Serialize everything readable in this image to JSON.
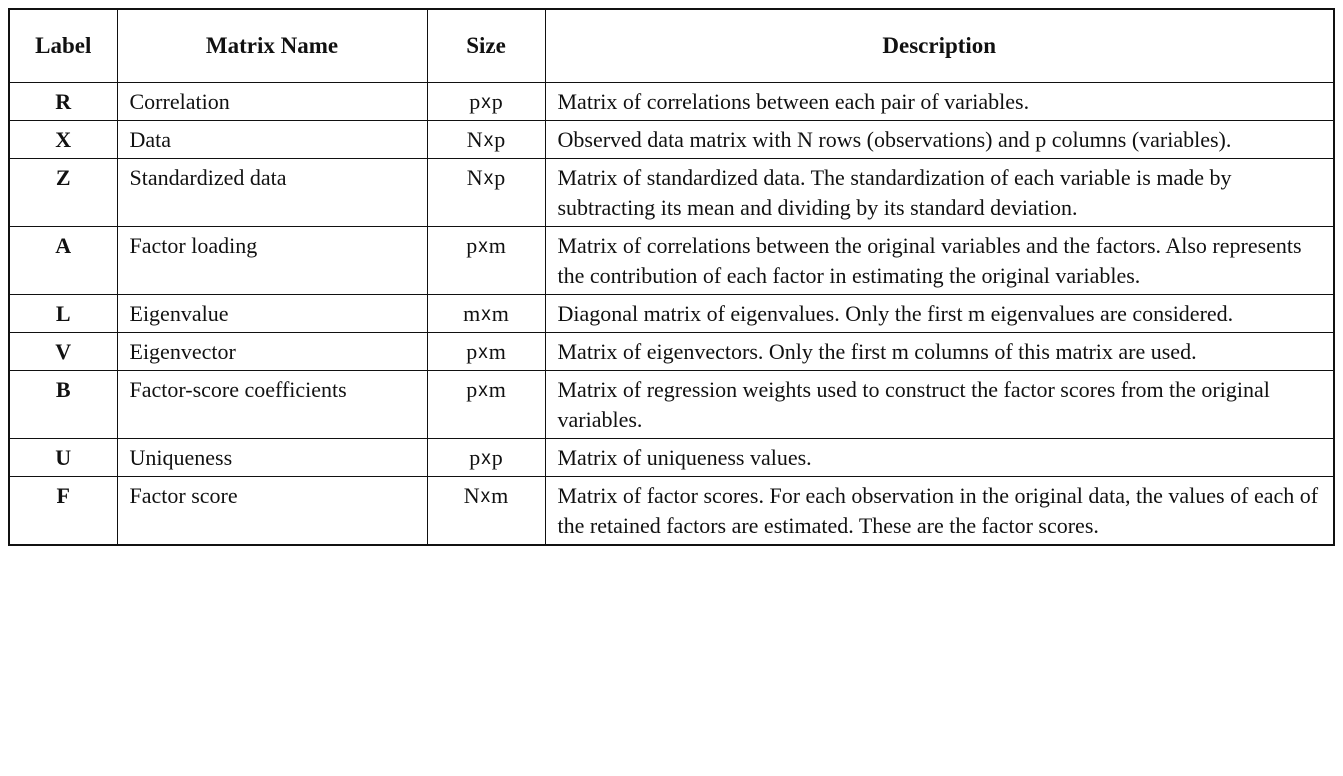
{
  "table": {
    "headers": {
      "label": "Label",
      "name": "Matrix Name",
      "size": "Size",
      "description": "Description"
    },
    "rows": [
      {
        "label": "R",
        "name": "Correlation",
        "size_a": "p",
        "size_b": "p",
        "description": "Matrix of correlations between each pair of variables."
      },
      {
        "label": "X",
        "name": "Data",
        "size_a": "N",
        "size_b": "p",
        "description": "Observed data matrix with N rows (observations) and p columns (variables)."
      },
      {
        "label": "Z",
        "name": "Standardized data",
        "size_a": "N",
        "size_b": "p",
        "description": "Matrix of standardized data. The standardization of each variable is made by subtracting its mean and dividing by its standard deviation."
      },
      {
        "label": "A",
        "name": "Factor loading",
        "size_a": "p",
        "size_b": "m",
        "description": "Matrix of correlations between the original variables and the factors. Also represents the contribution of each factor in estimating the original variables."
      },
      {
        "label": "L",
        "name": "Eigenvalue",
        "size_a": "m",
        "size_b": "m",
        "description": "Diagonal matrix of eigenvalues. Only the first m eigenvalues are considered."
      },
      {
        "label": "V",
        "name": "Eigenvector",
        "size_a": "p",
        "size_b": "m",
        "description": "Matrix of eigenvectors. Only the first m columns of this matrix are used."
      },
      {
        "label": "B",
        "name": "Factor-score coefficients",
        "size_a": "p",
        "size_b": "m",
        "description": "Matrix of regression weights used to construct the factor scores from the original variables."
      },
      {
        "label": "U",
        "name": "Uniqueness",
        "size_a": "p",
        "size_b": "p",
        "description": "Matrix of uniqueness values."
      },
      {
        "label": "F",
        "name": "Factor score",
        "size_a": "N",
        "size_b": "m",
        "description": "Matrix of factor scores. For each observation in the original data, the values of each of the retained factors are estimated. These are the factor scores."
      }
    ],
    "size_separator": "x"
  }
}
